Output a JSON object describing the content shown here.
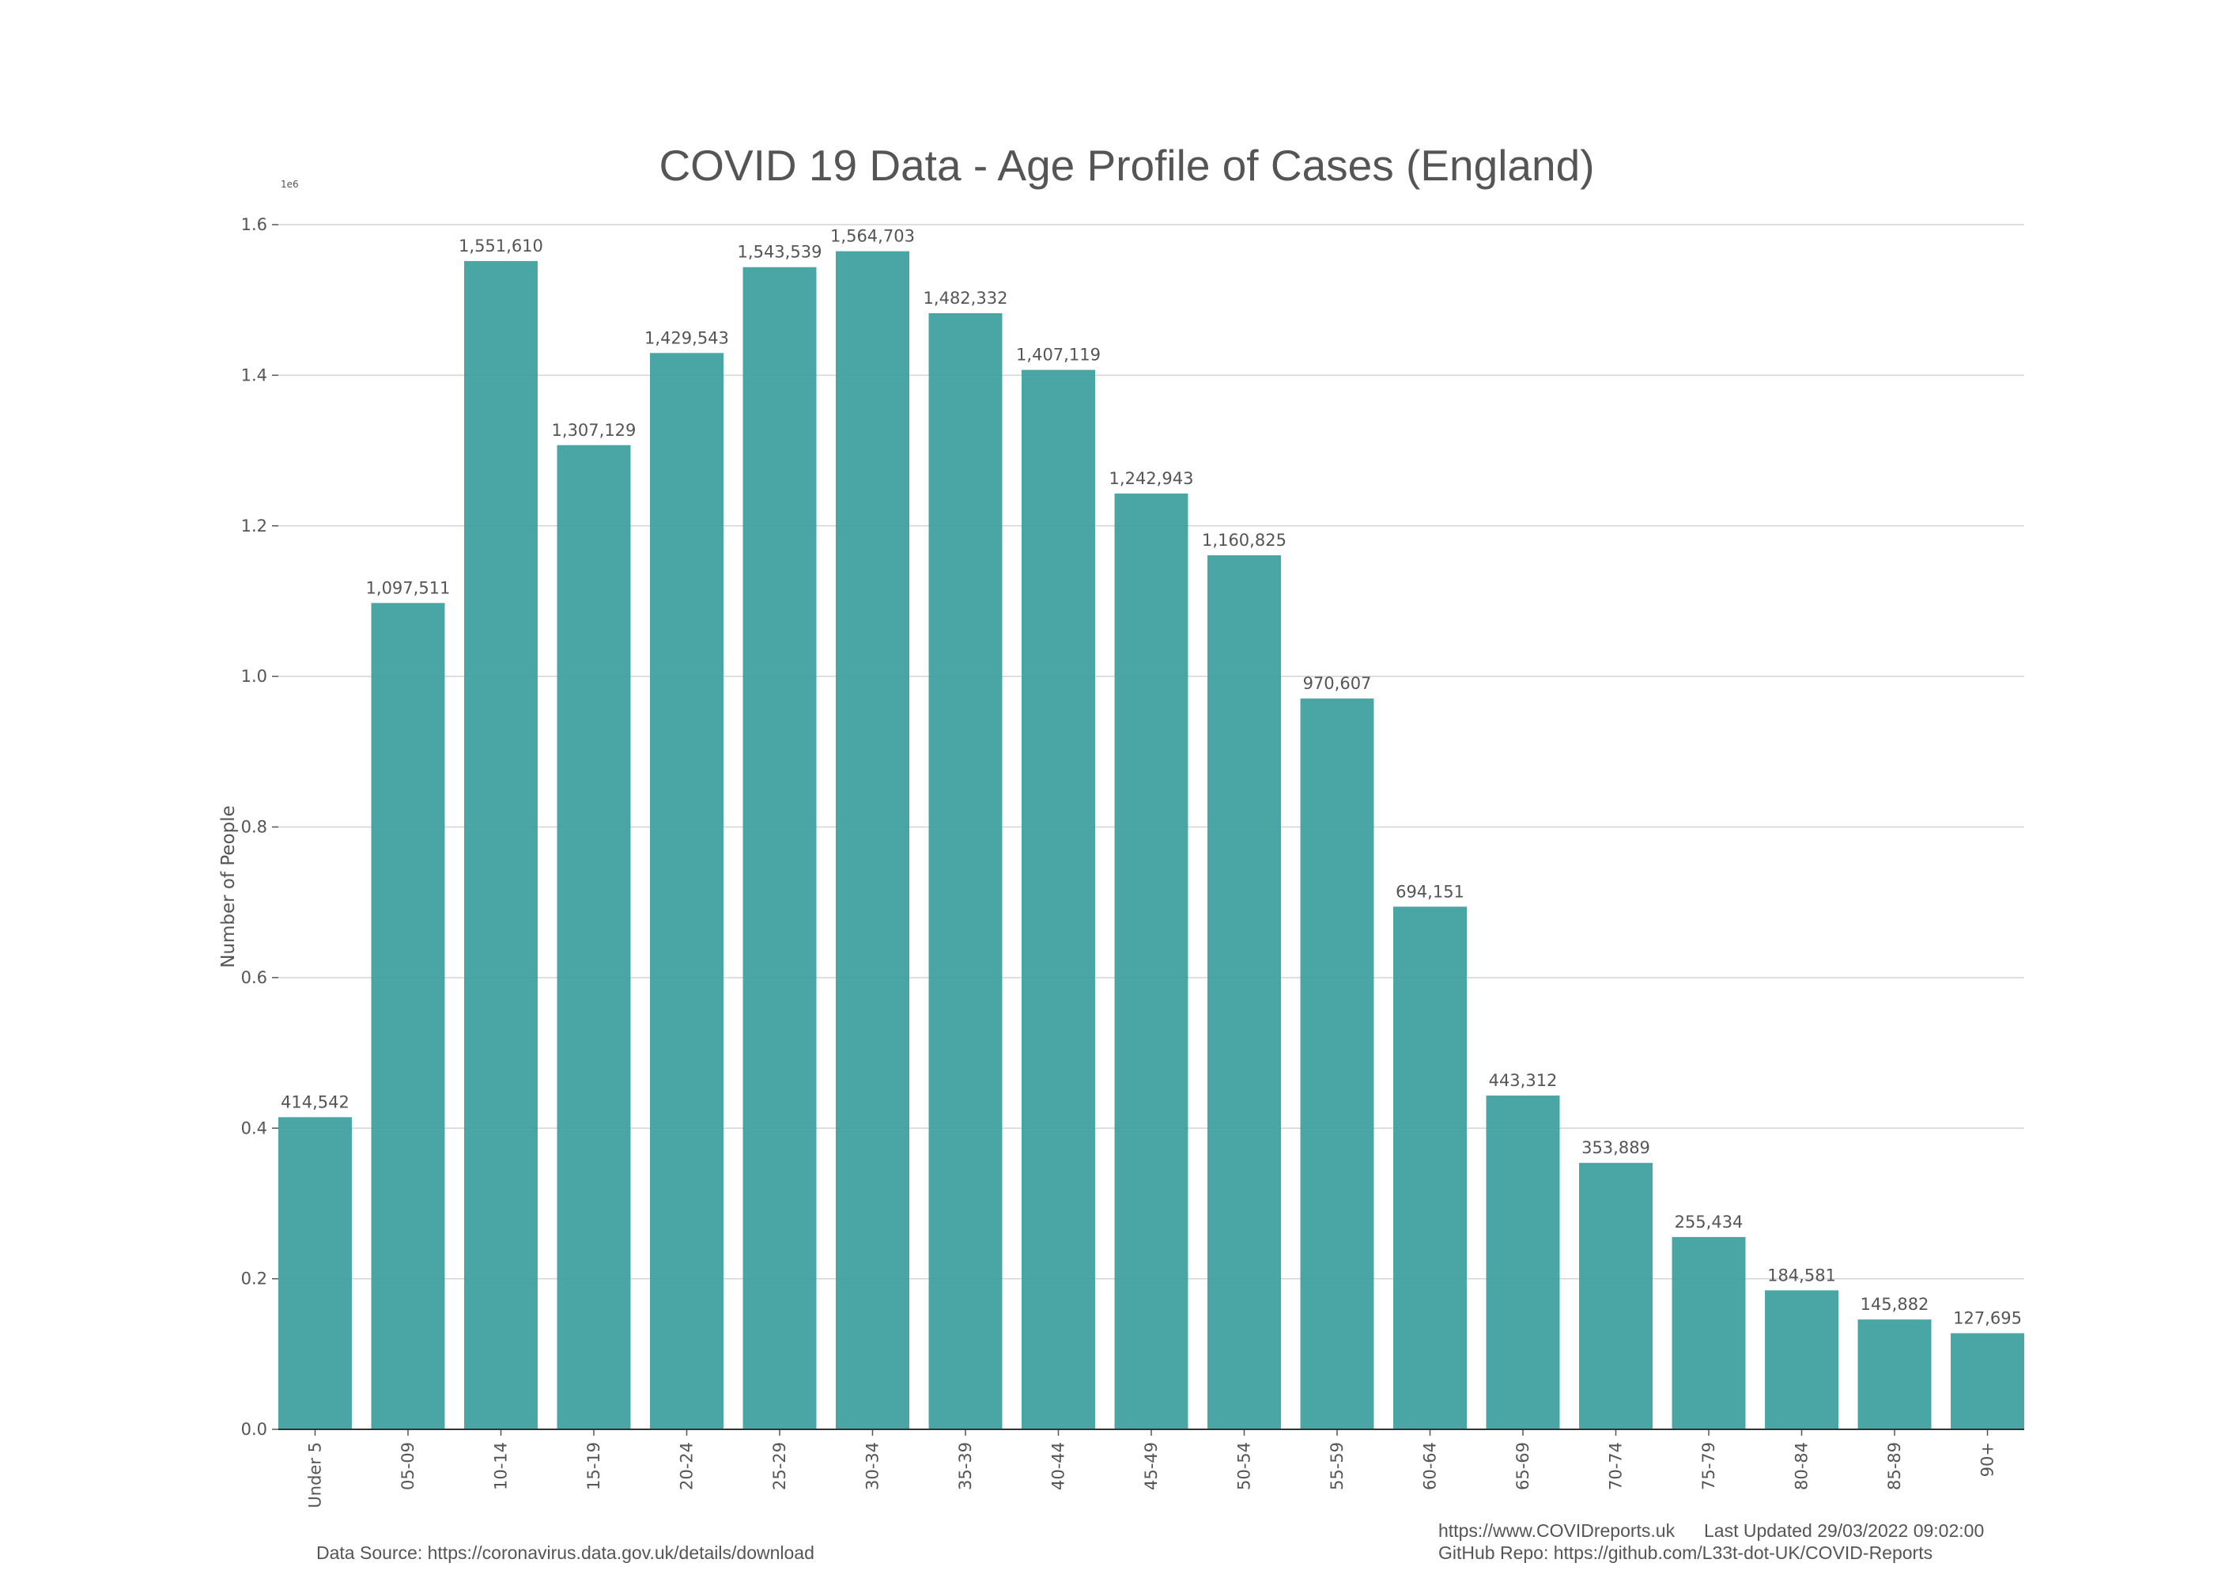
{
  "chart_data": {
    "type": "bar",
    "title": "COVID 19 Data - Age Profile of Cases (England)",
    "ylabel": "Number of People",
    "xlabel": "",
    "y_offset_label": "1e6",
    "ylim": [
      0,
      1600000
    ],
    "yticks": [
      0,
      200000,
      400000,
      600000,
      800000,
      1000000,
      1200000,
      1400000,
      1600000
    ],
    "ytick_labels": [
      "0.0",
      "0.2",
      "0.4",
      "0.6",
      "0.8",
      "1.0",
      "1.2",
      "1.4",
      "1.6"
    ],
    "grid": true,
    "bar_color": "#3a9e9c",
    "categories": [
      "Under 5",
      "05-09",
      "10-14",
      "15-19",
      "20-24",
      "25-29",
      "30-34",
      "35-39",
      "40-44",
      "45-49",
      "50-54",
      "55-59",
      "60-64",
      "65-69",
      "70-74",
      "75-79",
      "80-84",
      "85-89",
      "90+"
    ],
    "values": [
      414542,
      1097511,
      1551610,
      1307129,
      1429543,
      1543539,
      1564703,
      1482332,
      1407119,
      1242943,
      1160825,
      970607,
      694151,
      443312,
      353889,
      255434,
      184581,
      145882,
      127695
    ],
    "value_labels": [
      "414,542",
      "1,097,511",
      "1,551,610",
      "1,307,129",
      "1,429,543",
      "1,543,539",
      "1,564,703",
      "1,482,332",
      "1,407,119",
      "1,242,943",
      "1,160,825",
      "970,607",
      "694,151",
      "443,312",
      "353,889",
      "255,434",
      "184,581",
      "145,882",
      "127,695"
    ]
  },
  "footer": {
    "data_source": "Data Source: https://coronavirus.data.gov.uk/details/download",
    "website": "https://www.COVIDreports.uk",
    "last_updated": "Last Updated 29/03/2022 09:02:00",
    "github": "GitHub Repo: https://github.com/L33t-dot-UK/COVID-Reports"
  }
}
